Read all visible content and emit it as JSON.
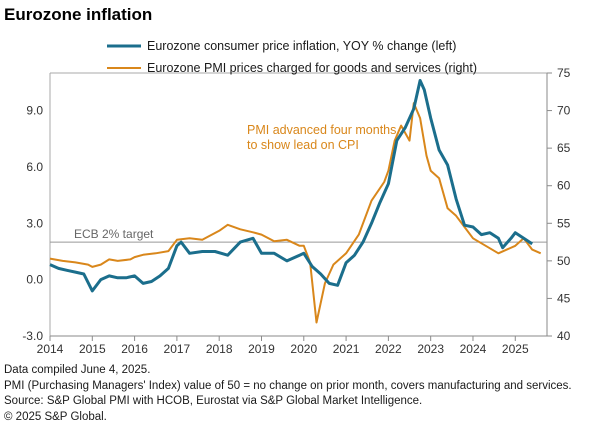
{
  "chart_data": {
    "type": "line",
    "title": "Eurozone inflation",
    "legend": {
      "placement": "top",
      "entries": [
        {
          "label": "Eurozone consumer price inflation, YOY % change (left)",
          "color": "#1b6e8c"
        },
        {
          "label": "Eurozone PMI prices charged for goods and services (right)",
          "color": "#d9871b"
        }
      ]
    },
    "annotation": {
      "lines": [
        "PMI advanced four months",
        "to show lead on CPI"
      ],
      "color": "#d9871b"
    },
    "reference_line": {
      "label": "ECB 2% target",
      "value": 2.0,
      "axis": "left",
      "color": "#999999"
    },
    "x_axis": {
      "range": [
        2014.0,
        2025.75
      ],
      "ticks": [
        2014,
        2015,
        2016,
        2017,
        2018,
        2019,
        2020,
        2021,
        2022,
        2023,
        2024,
        2025
      ],
      "tick_labels": [
        "2014",
        "2015",
        "2016",
        "2017",
        "2018",
        "2019",
        "2020",
        "2021",
        "2022",
        "2023",
        "2024",
        "2025"
      ]
    },
    "y_left": {
      "range": [
        -3.0,
        11.0
      ],
      "ticks": [
        -3.0,
        0.0,
        3.0,
        6.0,
        9.0
      ],
      "tick_labels": [
        "-3.0",
        "0.0",
        "3.0",
        "6.0",
        "9.0"
      ]
    },
    "y_right": {
      "range": [
        40,
        75
      ],
      "ticks": [
        40,
        45,
        50,
        55,
        60,
        65,
        70,
        75
      ],
      "tick_labels": [
        "40",
        "45",
        "50",
        "55",
        "60",
        "65",
        "70",
        "75"
      ]
    },
    "grid": false,
    "series": [
      {
        "name": "Eurozone consumer price inflation, YOY % change (left)",
        "axis": "left",
        "color": "#1b6e8c",
        "x": [
          2014.0,
          2014.2,
          2014.4,
          2014.6,
          2014.8,
          2015.0,
          2015.2,
          2015.4,
          2015.6,
          2015.8,
          2016.0,
          2016.2,
          2016.4,
          2016.6,
          2016.8,
          2017.0,
          2017.1,
          2017.3,
          2017.6,
          2017.9,
          2018.2,
          2018.5,
          2018.8,
          2019.0,
          2019.3,
          2019.6,
          2019.9,
          2020.0,
          2020.2,
          2020.4,
          2020.6,
          2020.8,
          2021.0,
          2021.2,
          2021.4,
          2021.6,
          2021.8,
          2022.0,
          2022.2,
          2022.4,
          2022.6,
          2022.75,
          2022.85,
          2023.0,
          2023.2,
          2023.4,
          2023.6,
          2023.8,
          2024.0,
          2024.2,
          2024.4,
          2024.6,
          2024.7,
          2024.9,
          2025.0,
          2025.2,
          2025.4
        ],
        "y": [
          0.8,
          0.6,
          0.5,
          0.4,
          0.3,
          -0.6,
          0.0,
          0.2,
          0.1,
          0.1,
          0.2,
          -0.2,
          -0.1,
          0.2,
          0.6,
          1.8,
          2.0,
          1.4,
          1.5,
          1.5,
          1.3,
          2.0,
          2.2,
          1.4,
          1.4,
          1.0,
          1.3,
          1.4,
          0.7,
          0.3,
          -0.2,
          -0.3,
          0.9,
          1.3,
          2.0,
          3.0,
          4.1,
          5.1,
          7.4,
          8.1,
          9.1,
          10.6,
          10.1,
          8.6,
          6.9,
          6.1,
          4.3,
          2.9,
          2.8,
          2.4,
          2.5,
          2.2,
          1.7,
          2.2,
          2.5,
          2.2,
          1.9
        ]
      },
      {
        "name": "Eurozone PMI prices charged for goods and services (right)",
        "axis": "right",
        "color": "#d9871b",
        "x": [
          2014.0,
          2014.3,
          2014.6,
          2014.9,
          2015.0,
          2015.2,
          2015.4,
          2015.6,
          2015.9,
          2016.0,
          2016.2,
          2016.5,
          2016.8,
          2017.0,
          2017.3,
          2017.6,
          2018.0,
          2018.2,
          2018.5,
          2018.8,
          2019.0,
          2019.3,
          2019.6,
          2019.9,
          2020.0,
          2020.15,
          2020.3,
          2020.5,
          2020.7,
          2021.0,
          2021.3,
          2021.6,
          2021.9,
          2022.0,
          2022.15,
          2022.3,
          2022.5,
          2022.6,
          2022.75,
          2022.9,
          2023.0,
          2023.2,
          2023.4,
          2023.6,
          2023.8,
          2024.0,
          2024.3,
          2024.6,
          2024.8,
          2025.0,
          2025.2,
          2025.4,
          2025.6
        ],
        "y": [
          50.3,
          50.0,
          49.8,
          49.5,
          49.2,
          49.5,
          50.2,
          50.0,
          50.2,
          50.5,
          50.8,
          51.0,
          51.3,
          52.8,
          53.0,
          52.8,
          54.0,
          54.8,
          54.2,
          53.8,
          53.5,
          52.6,
          52.8,
          52.0,
          52.0,
          49.8,
          41.8,
          47.0,
          49.5,
          51.0,
          53.5,
          58.0,
          60.5,
          62.0,
          66.0,
          68.0,
          66.0,
          71.0,
          69.0,
          64.0,
          62.0,
          61.0,
          57.0,
          56.0,
          54.5,
          53.0,
          52.0,
          51.0,
          51.5,
          52.0,
          53.0,
          51.5,
          51.0
        ]
      }
    ]
  },
  "footnotes": [
    "Data compiled June 4, 2025.",
    "PMI (Purchasing Managers' Index) value of 50 = no change on prior month, covers manufacturing and services.",
    "Source: S&P Global PMI with HCOB, Eurostat via S&P Global Market Intelligence.",
    "© 2025 S&P Global."
  ]
}
